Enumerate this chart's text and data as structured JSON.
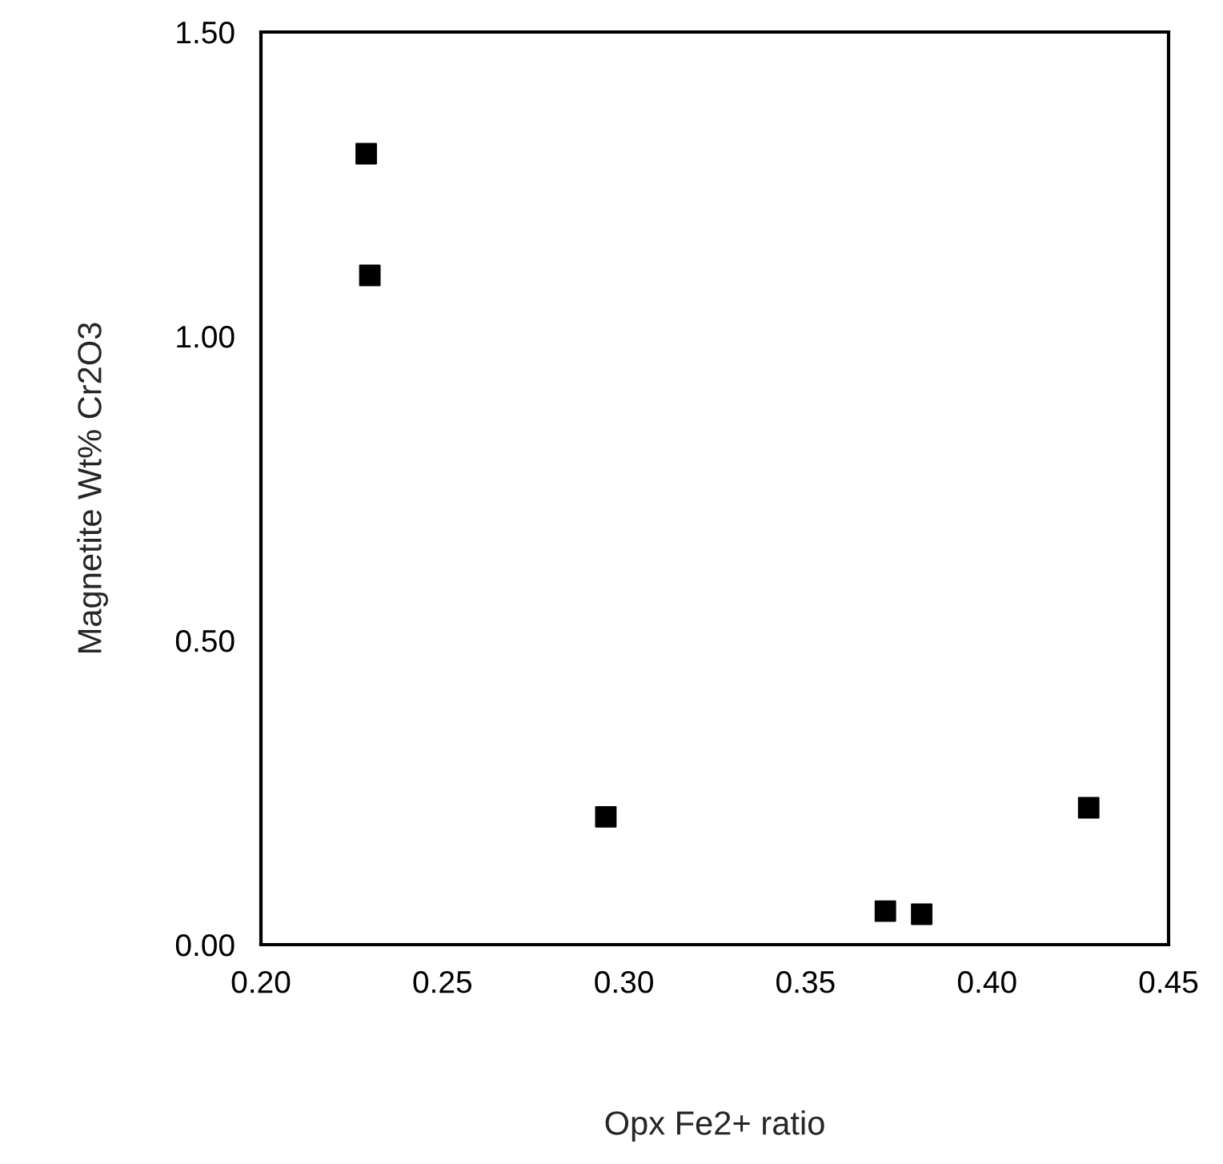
{
  "chart_data": {
    "type": "scatter",
    "xlabel": "Opx Fe2+ ratio",
    "ylabel": "Magnetite Wt% Cr2O3",
    "x": [
      0.229,
      0.23,
      0.295,
      0.372,
      0.382,
      0.428
    ],
    "values": [
      1.3,
      1.1,
      0.21,
      0.055,
      0.05,
      0.225
    ],
    "color": "#000000",
    "marker": "square",
    "grid": false,
    "xlim": [
      0.2,
      0.45
    ],
    "ylim": [
      0,
      1.5
    ],
    "xticks": [
      {
        "value": 0.2,
        "label": "0.20"
      },
      {
        "value": 0.25,
        "label": "0.25"
      },
      {
        "value": 0.3,
        "label": "0.30"
      },
      {
        "value": 0.35,
        "label": "0.35"
      },
      {
        "value": 0.4,
        "label": "0.40"
      },
      {
        "value": 0.45,
        "label": "0.45"
      }
    ],
    "yticks": [
      {
        "value": 0,
        "label": "0.00"
      },
      {
        "value": 0.5,
        "label": "0.50"
      },
      {
        "value": 1.0,
        "label": "1.00"
      },
      {
        "value": 1.5,
        "label": "1.50"
      }
    ]
  }
}
